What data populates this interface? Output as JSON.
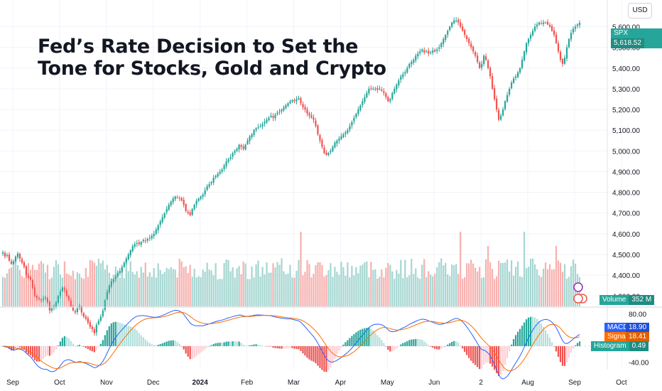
{
  "title_line1": "Fed’s Rate Decision to Set the",
  "title_line2": "Tone for Stocks, Gold and Crypto",
  "currency": "USD",
  "colors": {
    "up": "#26a69a",
    "down": "#ef5350",
    "macd": "#2962ff",
    "signal": "#ff6d00",
    "vol_up": "#a5d6d1",
    "vol_down": "#f7b0ae"
  },
  "chart_data": [
    {
      "type": "candlestick",
      "symbol": "SPX",
      "last_price_label": "5,618.52",
      "y_ticks": [
        "5,600.00",
        "5,500.00",
        "5,400.00",
        "5,300.00",
        "5,200.00",
        "5,100.00",
        "5,000.00",
        "4,900.00",
        "4,800.00",
        "4,700.00",
        "4,600.00",
        "4,500.00",
        "4,400.00",
        "4,300.00"
      ],
      "y_tick_values": [
        5600,
        5500,
        5400,
        5300,
        5200,
        5100,
        5000,
        4900,
        4800,
        4700,
        4600,
        4500,
        4400,
        4300
      ],
      "ylim": [
        4270,
        5660
      ],
      "x_ticks": [
        "Sep",
        "Oct",
        "Nov",
        "Dec",
        "2024",
        "Feb",
        "Mar",
        "Apr",
        "May",
        "Jun",
        "2",
        "Aug",
        "Sep",
        "Oct"
      ],
      "x_tick_index": [
        0,
        22,
        44,
        66,
        88,
        110,
        132,
        154,
        176,
        198,
        220,
        242,
        264,
        286
      ],
      "closes": [
        4510,
        4490,
        4497,
        4470,
        4455,
        4465,
        4490,
        4505,
        4480,
        4460,
        4440,
        4400,
        4390,
        4380,
        4340,
        4300,
        4290,
        4285,
        4280,
        4285,
        4290,
        4270,
        4230,
        4240,
        4250,
        4270,
        4300,
        4320,
        4340,
        4330,
        4300,
        4280,
        4250,
        4230,
        4220,
        4240,
        4250,
        4220,
        4200,
        4190,
        4170,
        4150,
        4140,
        4120,
        4160,
        4180,
        4200,
        4230,
        4280,
        4320,
        4350,
        4370,
        4380,
        4395,
        4410,
        4420,
        4440,
        4460,
        4480,
        4500,
        4520,
        4540,
        4550,
        4555,
        4550,
        4560,
        4570,
        4565,
        4575,
        4580,
        4590,
        4600,
        4620,
        4640,
        4660,
        4680,
        4700,
        4720,
        4740,
        4755,
        4770,
        4780,
        4775,
        4770,
        4760,
        4740,
        4710,
        4700,
        4690,
        4720,
        4740,
        4760,
        4770,
        4780,
        4790,
        4810,
        4830,
        4840,
        4850,
        4870,
        4880,
        4890,
        4900,
        4910,
        4930,
        4950,
        4960,
        4970,
        4990,
        5000,
        5010,
        5030,
        5020,
        5010,
        5030,
        5050,
        5070,
        5080,
        5100,
        5110,
        5115,
        5120,
        5130,
        5140,
        5150,
        5160,
        5170,
        5160,
        5175,
        5185,
        5190,
        5200,
        5210,
        5220,
        5230,
        5240,
        5245,
        5240,
        5250,
        5255,
        5230,
        5210,
        5200,
        5180,
        5170,
        5160,
        5150,
        5120,
        5080,
        5050,
        5020,
        4990,
        4980,
        4990,
        5000,
        5020,
        5040,
        5050,
        5060,
        5070,
        5080,
        5090,
        5100,
        5120,
        5140,
        5160,
        5180,
        5200,
        5220,
        5240,
        5260,
        5280,
        5300,
        5300,
        5300,
        5300,
        5295,
        5300,
        5290,
        5280,
        5260,
        5240,
        5250,
        5280,
        5300,
        5320,
        5340,
        5360,
        5370,
        5380,
        5400,
        5420,
        5430,
        5440,
        5460,
        5470,
        5480,
        5490,
        5475,
        5480,
        5470,
        5475,
        5485,
        5480,
        5490,
        5500,
        5520,
        5540,
        5560,
        5580,
        5600,
        5620,
        5630,
        5630,
        5620,
        5600,
        5580,
        5560,
        5540,
        5520,
        5500,
        5480,
        5460,
        5430,
        5400,
        5420,
        5460,
        5440,
        5400,
        5360,
        5300,
        5250,
        5200,
        5150,
        5170,
        5200,
        5240,
        5270,
        5300,
        5330,
        5350,
        5360,
        5380,
        5400,
        5440,
        5480,
        5520,
        5540,
        5560,
        5580,
        5600,
        5610,
        5620,
        5615,
        5620,
        5620,
        5610,
        5600,
        5580,
        5560,
        5520,
        5480,
        5440,
        5420,
        5450,
        5500,
        5540,
        5570,
        5590,
        5600,
        5610,
        5618.52
      ]
    },
    {
      "type": "bar",
      "name": "Volume",
      "last_value_label": "352 M"
    },
    {
      "type": "line",
      "panel": "MACD",
      "y_ticks": [
        "80.00",
        "-40.00"
      ],
      "y_tick_values": [
        80,
        -40
      ],
      "ylim": [
        -55,
        90
      ],
      "series": [
        {
          "name": "MACD",
          "value_label": "18.90"
        },
        {
          "name": "Signal",
          "value_label": "18.41"
        },
        {
          "name": "Histogram",
          "value_label": "0.49"
        }
      ]
    }
  ]
}
